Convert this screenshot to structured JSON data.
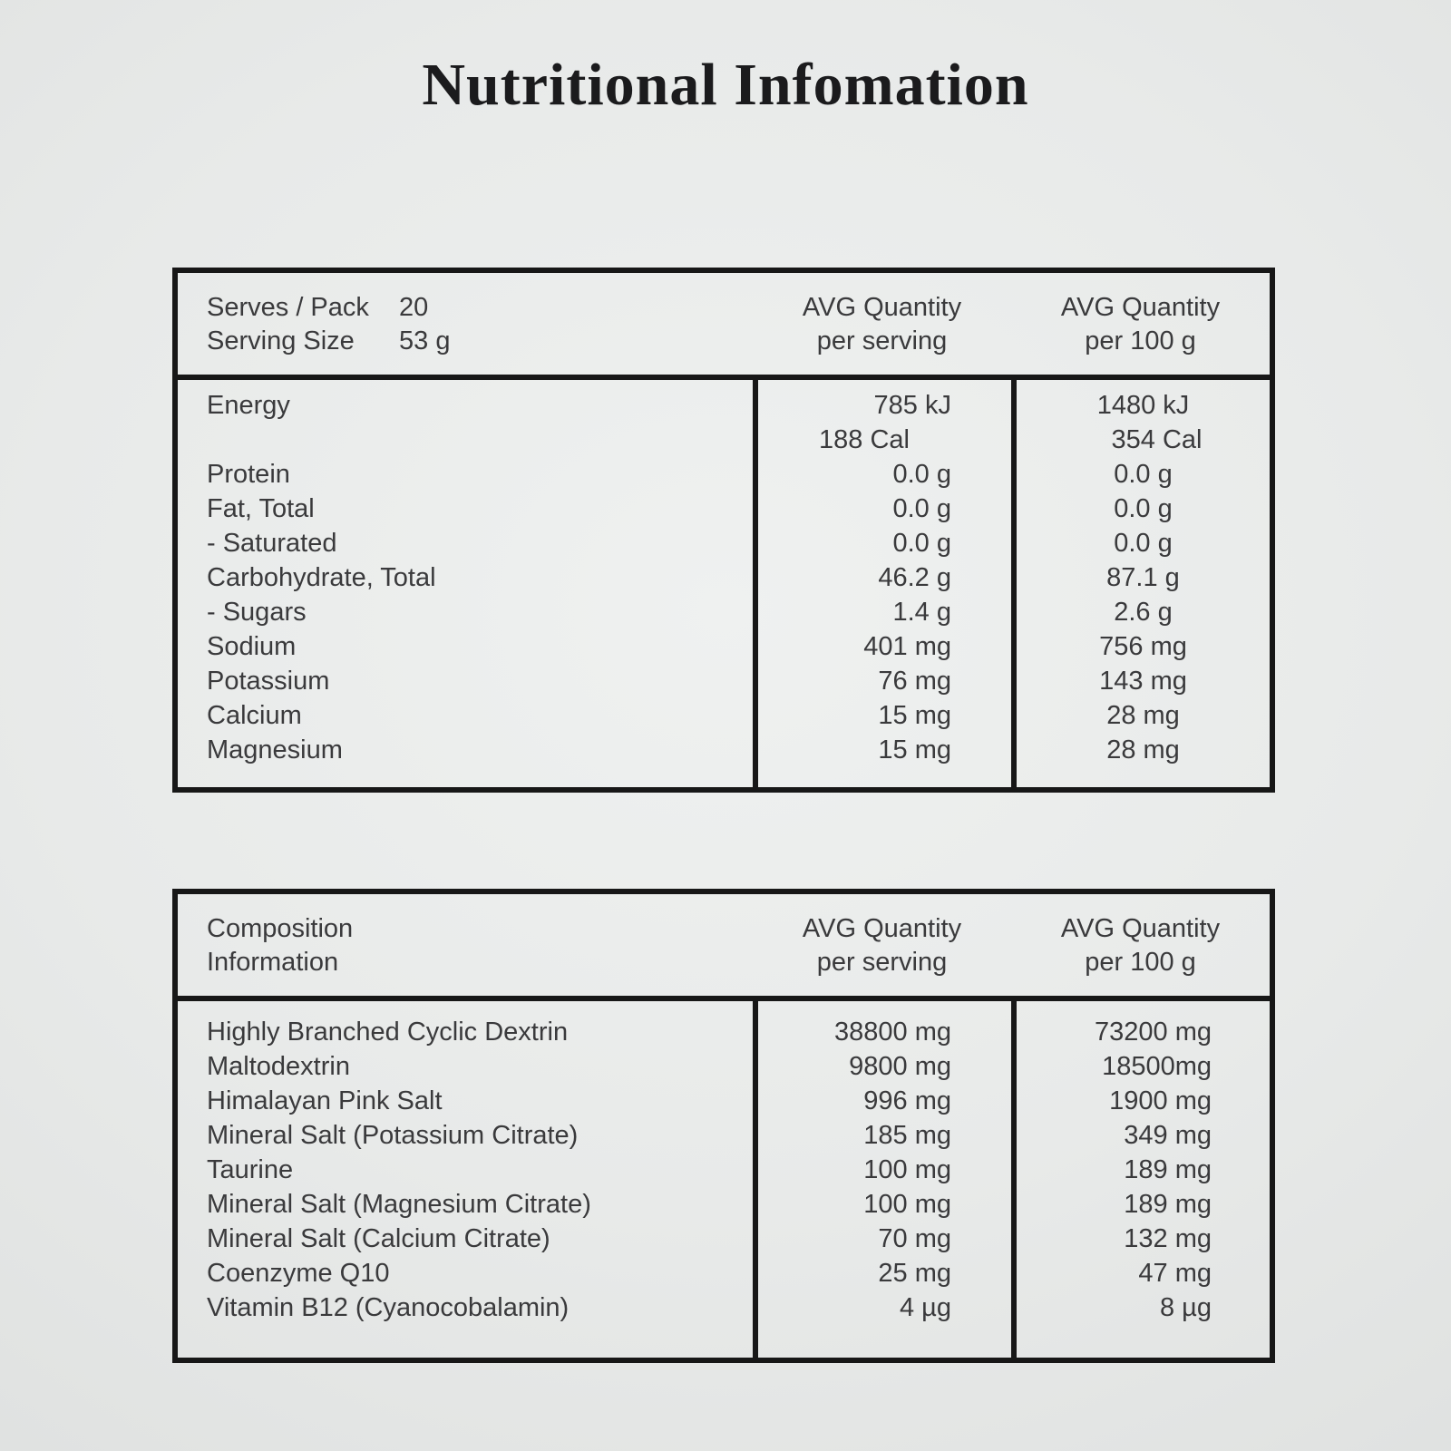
{
  "page": {
    "title": "Nutritional Infomation"
  },
  "colors": {
    "background": "#e8eae9",
    "text": "#3a3a3c",
    "border": "#171717",
    "title_text": "#1b1b1d"
  },
  "nutrition_table": {
    "header": {
      "meta": [
        {
          "label": "Serves / Pack",
          "value": "20"
        },
        {
          "label": "Serving Size",
          "value": "53 g"
        }
      ],
      "per_serving_heading": [
        "AVG Quantity",
        "per serving"
      ],
      "per_100g_heading": [
        "AVG Quantity",
        "per 100 g"
      ]
    },
    "rows": [
      {
        "label": "Energy",
        "per_serving": "785 kJ",
        "per_100g": "1480 kJ"
      },
      {
        "label": "",
        "per_serving": "188 Cal",
        "per_100g": "354 Cal"
      },
      {
        "label": "Protein",
        "per_serving": "0.0 g",
        "per_100g": "0.0 g"
      },
      {
        "label": "Fat, Total",
        "per_serving": "0.0 g",
        "per_100g": "0.0 g"
      },
      {
        "label": "- Saturated",
        "per_serving": "0.0 g",
        "per_100g": "0.0 g"
      },
      {
        "label": "Carbohydrate, Total",
        "per_serving": "46.2 g",
        "per_100g": "87.1 g"
      },
      {
        "label": "- Sugars",
        "per_serving": "1.4 g",
        "per_100g": "2.6 g"
      },
      {
        "label": "Sodium",
        "per_serving": "401 mg",
        "per_100g": "756 mg"
      },
      {
        "label": "Potassium",
        "per_serving": "76 mg",
        "per_100g": "143 mg"
      },
      {
        "label": "Calcium",
        "per_serving": "15 mg",
        "per_100g": "28 mg"
      },
      {
        "label": "Magnesium",
        "per_serving": "15 mg",
        "per_100g": "28 mg"
      }
    ]
  },
  "composition_table": {
    "header": {
      "title_lines": [
        "Composition",
        "Information"
      ],
      "per_serving_heading": [
        "AVG Quantity",
        "per serving"
      ],
      "per_100g_heading": [
        "AVG Quantity",
        "per 100 g"
      ]
    },
    "rows": [
      {
        "label": "Highly Branched Cyclic Dextrin",
        "per_serving": "38800 mg",
        "per_100g": "73200 mg"
      },
      {
        "label": "Maltodextrin",
        "per_serving": "9800 mg",
        "per_100g": "18500mg"
      },
      {
        "label": "Himalayan Pink Salt",
        "per_serving": "996 mg",
        "per_100g": "1900 mg"
      },
      {
        "label": "Mineral Salt (Potassium Citrate)",
        "per_serving": "185 mg",
        "per_100g": "349 mg"
      },
      {
        "label": "Taurine",
        "per_serving": "100 mg",
        "per_100g": "189 mg"
      },
      {
        "label": "Mineral Salt (Magnesium Citrate)",
        "per_serving": "100 mg",
        "per_100g": "189 mg"
      },
      {
        "label": "Mineral Salt (Calcium Citrate)",
        "per_serving": "70 mg",
        "per_100g": "132 mg"
      },
      {
        "label": "Coenzyme Q10",
        "per_serving": "25 mg",
        "per_100g": "47 mg"
      },
      {
        "label": "Vitamin B12 (Cyanocobalamin)",
        "per_serving": "4 µg",
        "per_100g": "8 µg"
      }
    ]
  }
}
